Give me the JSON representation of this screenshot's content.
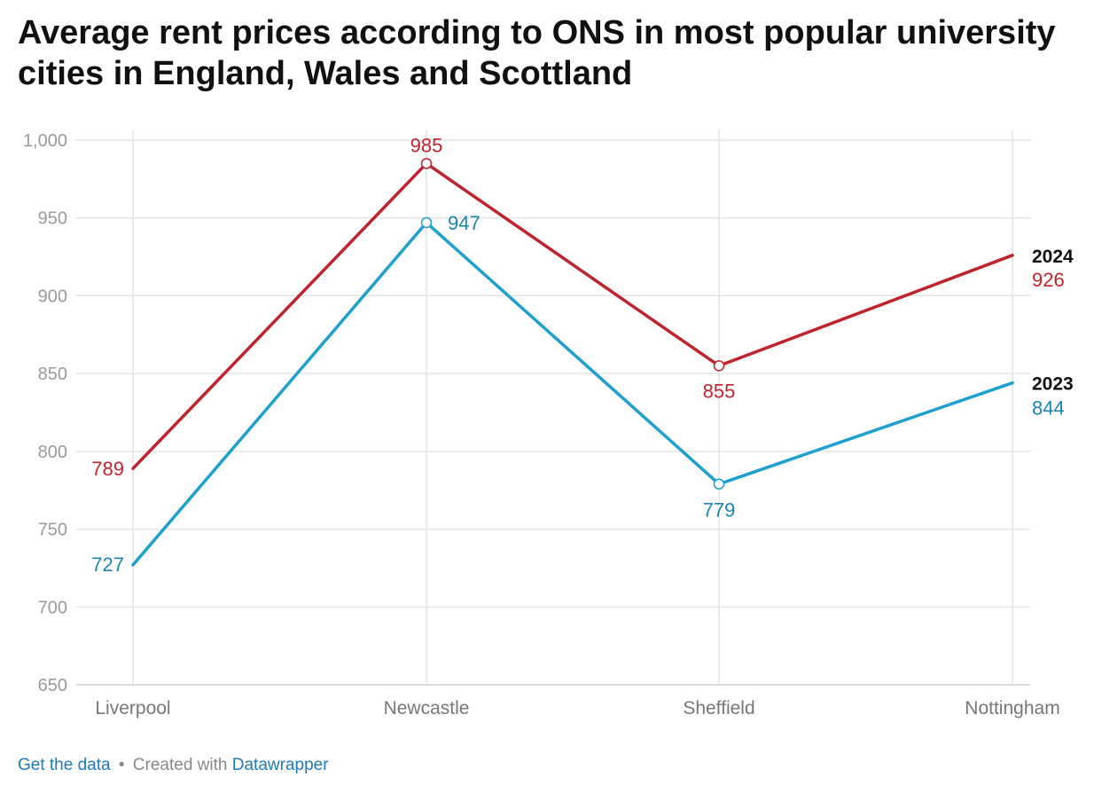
{
  "title": "Average rent prices according to ONS in most popular university cities in England, Wales and Scottland",
  "footer": {
    "get_data": "Get the data",
    "separator": "•",
    "created_with": "Created with",
    "tool": "Datawrapper"
  },
  "chart_data": {
    "type": "line",
    "title": "Average rent prices according to ONS in most popular university cities in England, Wales and Scottland",
    "xlabel": "",
    "ylabel": "",
    "categories": [
      "Liverpool",
      "Newcastle",
      "Sheffield",
      "Nottingham"
    ],
    "ylim": [
      650,
      1000
    ],
    "yticks": [
      650,
      700,
      750,
      800,
      850,
      900,
      950,
      1000
    ],
    "ytick_labels": [
      "650",
      "700",
      "750",
      "800",
      "850",
      "900",
      "950",
      "1,000"
    ],
    "grid": true,
    "legend": "direct labels at line ends (right)",
    "series": [
      {
        "name": "2024",
        "color": "#c0232b",
        "values": [
          789,
          985,
          855,
          926
        ]
      },
      {
        "name": "2023",
        "color": "#1ea0cf",
        "label_color": "#1a86ad",
        "values": [
          727,
          947,
          779,
          844
        ]
      }
    ]
  }
}
